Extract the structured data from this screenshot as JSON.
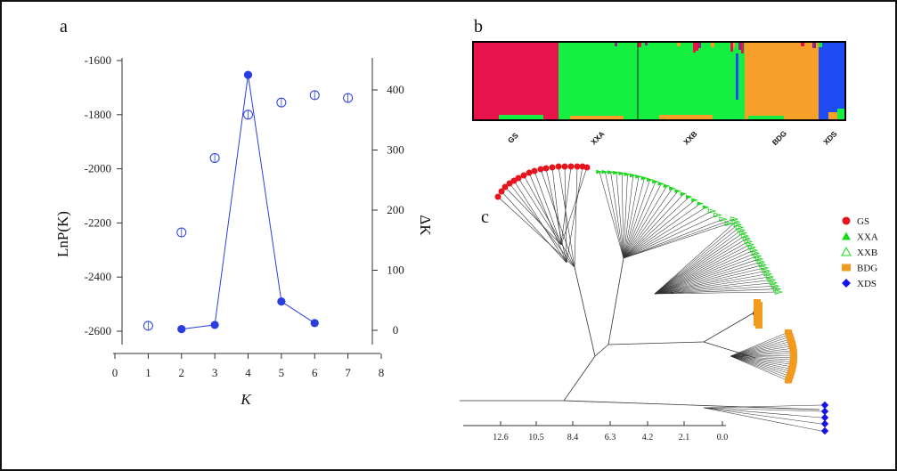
{
  "panels": {
    "a": "a",
    "b": "b",
    "c": "c"
  },
  "chart_data": [
    {
      "type": "scatter",
      "panel": "a",
      "xlabel": "K",
      "ylabel": "LnP(K)",
      "y2label": "ΔK",
      "xlim": [
        0,
        8
      ],
      "ylim": [
        -2680,
        -1580
      ],
      "y2lim": [
        -17,
        453
      ],
      "xticks": [
        "0",
        "1",
        "2",
        "3",
        "4",
        "5",
        "6",
        "7",
        "8"
      ],
      "yticks": [
        "-1600",
        "-1800",
        "-2000",
        "-2200",
        "-2400",
        "-2600"
      ],
      "y2ticks": [
        "0",
        "100",
        "200",
        "300",
        "400"
      ],
      "series": [
        {
          "axis": "left",
          "style": "open-circle",
          "color": "#2a3ee0",
          "points": [
            [
              1,
              -2580
            ],
            [
              2,
              -2235
            ],
            [
              3,
              -1960
            ],
            [
              4,
              -1800
            ],
            [
              5,
              -1755
            ],
            [
              6,
              -1728
            ],
            [
              7,
              -1738
            ]
          ]
        },
        {
          "axis": "right",
          "style": "filled-circle-line",
          "color": "#2a3ee0",
          "points": [
            [
              2,
              2
            ],
            [
              3,
              9
            ],
            [
              4,
              425
            ],
            [
              5,
              48
            ],
            [
              6,
              12
            ]
          ]
        }
      ]
    },
    {
      "type": "bar",
      "panel": "b",
      "categories": [
        "GS",
        "XXA",
        "XXB",
        "BDG",
        "XDS"
      ],
      "colors": {
        "red": "#e8134b",
        "green": "#14ef41",
        "orange": "#f6a02a",
        "blue": "#1f4bf4",
        "purple": "#8a2c7c"
      }
    },
    {
      "type": "table",
      "panel": "c",
      "xticks": [
        "12.6",
        "10.5",
        "8.4",
        "6.3",
        "4.2",
        "2.1",
        "0.0"
      ],
      "legend": [
        {
          "label": "GS",
          "shape": "circle",
          "color": "#e6141e"
        },
        {
          "label": "XXA",
          "shape": "triangle",
          "color": "#1bd81b"
        },
        {
          "label": "XXB",
          "shape": "triangle-open",
          "color": "#1bd81b"
        },
        {
          "label": "BDG",
          "shape": "square",
          "color": "#f29a1d"
        },
        {
          "label": "XDS",
          "shape": "diamond",
          "color": "#1515e6"
        }
      ]
    }
  ]
}
